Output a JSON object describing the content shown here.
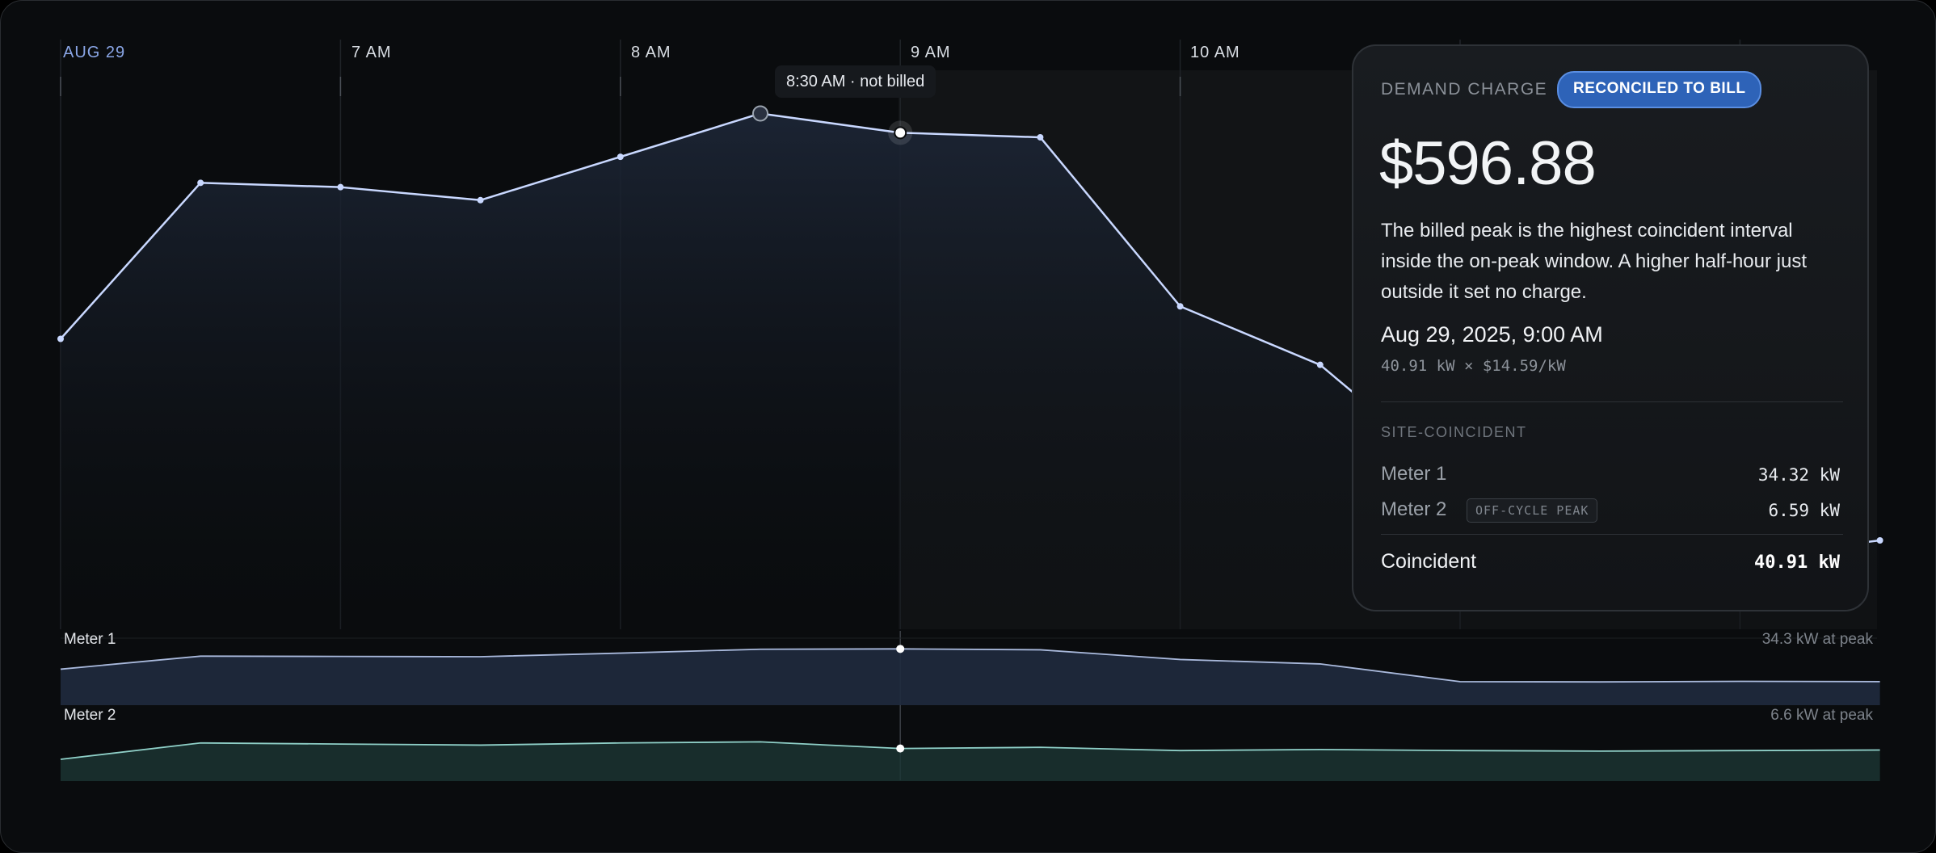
{
  "time_axis": {
    "date_label": "AUG 29",
    "hour_labels": [
      "7 AM",
      "8 AM",
      "9 AM",
      "10 AM"
    ]
  },
  "tooltip": {
    "text": "8:30 AM · not billed"
  },
  "colors": {
    "site_line": "#c9d8ff",
    "meter1_line": "#a9b9dc",
    "meter2_line": "#8fd0c8",
    "badge_bg": "#2e63b8",
    "date_label": "#8aa6e6"
  },
  "chart_data": [
    {
      "type": "area",
      "series": [
        {
          "values": [
            31.4,
            38.6,
            38.4,
            37.8,
            39.8,
            41.8,
            40.91,
            40.7,
            32.9,
            30.2,
            24.8,
            19.2,
            21.3,
            22.1
          ]
        }
      ],
      "highlight": {
        "billed_index": 6,
        "not_billed_index": 5
      }
    },
    {
      "type": "area",
      "title": "Meter 1",
      "annotation": "34.3 kW at peak",
      "series": [
        {
          "name": "Meter 1",
          "values": [
            27.0,
            31.7,
            31.6,
            31.5,
            32.8,
            34.2,
            34.32,
            34.0,
            30.5,
            28.9,
            22.5,
            22.4,
            22.6,
            22.5
          ]
        }
      ]
    },
    {
      "type": "area",
      "title": "Meter 2",
      "annotation": "6.6 kW at peak",
      "series": [
        {
          "name": "Meter 2",
          "values": [
            5.6,
            7.1,
            7.0,
            6.9,
            7.1,
            7.2,
            6.59,
            6.7,
            6.4,
            6.5,
            6.4,
            6.35,
            6.4,
            6.45
          ]
        }
      ]
    }
  ],
  "card": {
    "eyebrow": "DEMAND CHARGE",
    "badge": "RECONCILED TO BILL",
    "amount": "$596.88",
    "description": "The billed peak is the highest coincident interval inside the on-peak window. A higher half-hour just outside it set no charge.",
    "datetime": "Aug 29, 2025, 9:00 AM",
    "calculation": "40.91 kW × $14.59/kW",
    "section_label": "SITE-COINCIDENT",
    "rows": [
      {
        "label": "Meter 1",
        "value": "34.32 kW"
      },
      {
        "label": "Meter 2",
        "tag": "OFF-CYCLE PEAK",
        "value": "6.59 kW"
      }
    ],
    "total": {
      "label": "Coincident",
      "value": "40.91 kW"
    }
  }
}
